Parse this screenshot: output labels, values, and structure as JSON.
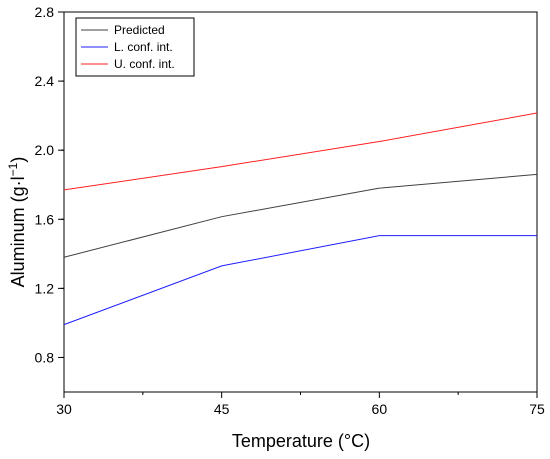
{
  "chart_data": {
    "type": "line",
    "title": "",
    "xlabel": "Temperature (°C)",
    "ylabel_main": "Aluminum (g·l",
    "ylabel_exp": "−1",
    "ylabel_close": ")",
    "x": [
      30,
      45,
      60,
      75
    ],
    "xlim": [
      30,
      75
    ],
    "ylim": [
      0.6,
      2.8
    ],
    "xticks": [
      "30",
      "45",
      "60",
      "75"
    ],
    "xtick_values": [
      30,
      45,
      60,
      75
    ],
    "yticks": [
      "0.8",
      "1.2",
      "1.6",
      "2.0",
      "2.4",
      "2.8"
    ],
    "ytick_values": [
      0.8,
      1.2,
      1.6,
      2.0,
      2.4,
      2.8
    ],
    "grid": false,
    "legend_position": "top-left",
    "series": [
      {
        "name": "Predicted",
        "values": [
          1.38,
          1.615,
          1.78,
          1.86
        ],
        "color": "#404040"
      },
      {
        "name": "L. conf. int.",
        "values": [
          0.99,
          1.33,
          1.505,
          1.505
        ],
        "color": "#1f1fff"
      },
      {
        "name": "U. conf. int.",
        "values": [
          1.77,
          1.905,
          2.05,
          2.215
        ],
        "color": "#ff2020"
      }
    ]
  }
}
